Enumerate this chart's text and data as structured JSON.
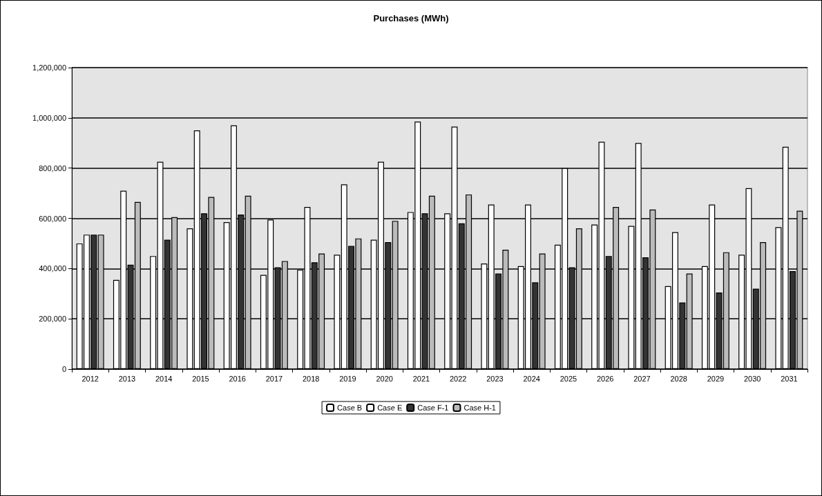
{
  "chart_data": {
    "type": "bar",
    "title": "Purchases (MWh)",
    "categories": [
      "2012",
      "2013",
      "2014",
      "2015",
      "2016",
      "2017",
      "2018",
      "2019",
      "2020",
      "2021",
      "2022",
      "2023",
      "2024",
      "2025",
      "2026",
      "2027",
      "2028",
      "2029",
      "2030",
      "2031"
    ],
    "series": [
      {
        "name": "Case B",
        "color": "#ffffff",
        "values": [
          500000,
          355000,
          450000,
          560000,
          585000,
          375000,
          395000,
          455000,
          515000,
          625000,
          620000,
          420000,
          410000,
          495000,
          575000,
          570000,
          330000,
          410000,
          455000,
          565000
        ]
      },
      {
        "name": "Case E",
        "color": "#ffffff",
        "values": [
          535000,
          710000,
          825000,
          950000,
          970000,
          595000,
          645000,
          735000,
          825000,
          985000,
          965000,
          655000,
          655000,
          800000,
          905000,
          900000,
          545000,
          655000,
          720000,
          885000
        ]
      },
      {
        "name": "Case F-1",
        "color": "#333333",
        "values": [
          535000,
          415000,
          515000,
          620000,
          615000,
          405000,
          425000,
          490000,
          505000,
          620000,
          580000,
          380000,
          345000,
          405000,
          450000,
          445000,
          265000,
          305000,
          320000,
          390000
        ]
      },
      {
        "name": "Case H-1",
        "color": "#bbbbbb",
        "values": [
          535000,
          665000,
          605000,
          685000,
          690000,
          430000,
          460000,
          520000,
          590000,
          690000,
          695000,
          475000,
          460000,
          560000,
          645000,
          635000,
          380000,
          465000,
          505000,
          630000
        ]
      }
    ],
    "ylim": [
      0,
      1200000
    ],
    "yticks": [
      0,
      {
        "value": 200000,
        "label": "200,000"
      },
      {
        "value": 400000,
        "label": "400,000"
      },
      {
        "value": 600000,
        "label": "600,000"
      },
      {
        "value": 800000,
        "label": "800,000"
      },
      {
        "value": 1000000,
        "label": "1,000,000"
      },
      {
        "value": 1200000,
        "label": "1,200,000"
      }
    ],
    "grid": "y",
    "legend": "bottom"
  }
}
